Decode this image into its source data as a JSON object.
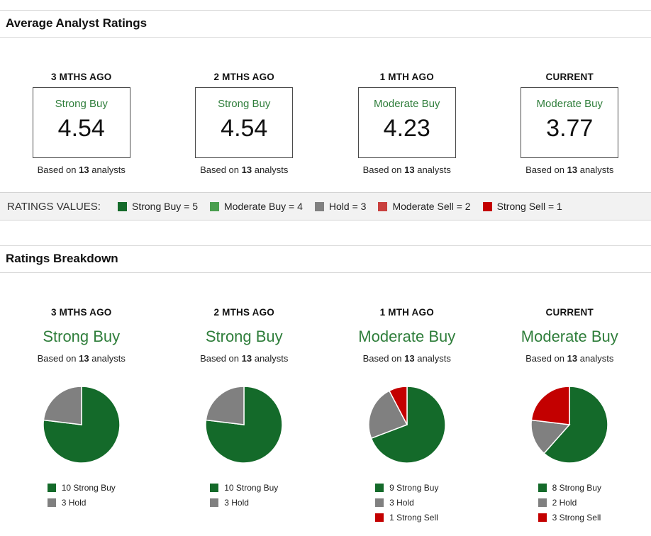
{
  "sections": {
    "average": {
      "title": "Average Analyst Ratings"
    },
    "breakdown": {
      "title": "Ratings Breakdown"
    }
  },
  "based_on": {
    "prefix": "Based on",
    "suffix": "analysts"
  },
  "colors": {
    "strong_buy": "#146a2a",
    "moderate_buy": "#4a9e4f",
    "hold": "#808080",
    "moderate_sell": "#c9403e",
    "strong_sell": "#c30000",
    "rating_text_green": "#2f7e3b"
  },
  "average": {
    "columns": [
      {
        "period": "3 MTHS AGO",
        "rating": "Strong Buy",
        "value": "4.54",
        "analysts": "13"
      },
      {
        "period": "2 MTHS AGO",
        "rating": "Strong Buy",
        "value": "4.54",
        "analysts": "13"
      },
      {
        "period": "1 MTH AGO",
        "rating": "Moderate Buy",
        "value": "4.23",
        "analysts": "13"
      },
      {
        "period": "CURRENT",
        "rating": "Moderate Buy",
        "value": "3.77",
        "analysts": "13"
      }
    ]
  },
  "ratings_values": {
    "label": "RATINGS VALUES:",
    "items": [
      {
        "label": "Strong Buy = 5",
        "color_key": "strong_buy"
      },
      {
        "label": "Moderate Buy = 4",
        "color_key": "moderate_buy"
      },
      {
        "label": "Hold = 3",
        "color_key": "hold"
      },
      {
        "label": "Moderate Sell = 2",
        "color_key": "moderate_sell"
      },
      {
        "label": "Strong Sell = 1",
        "color_key": "strong_sell"
      }
    ]
  },
  "breakdown": {
    "columns": [
      {
        "period": "3 MTHS AGO",
        "rating": "Strong Buy",
        "analysts": "13",
        "slices": [
          {
            "count": 10,
            "label": "Strong Buy",
            "color_key": "strong_buy"
          },
          {
            "count": 3,
            "label": "Hold",
            "color_key": "hold"
          }
        ]
      },
      {
        "period": "2 MTHS AGO",
        "rating": "Strong Buy",
        "analysts": "13",
        "slices": [
          {
            "count": 10,
            "label": "Strong Buy",
            "color_key": "strong_buy"
          },
          {
            "count": 3,
            "label": "Hold",
            "color_key": "hold"
          }
        ]
      },
      {
        "period": "1 MTH AGO",
        "rating": "Moderate Buy",
        "analysts": "13",
        "slices": [
          {
            "count": 9,
            "label": "Strong Buy",
            "color_key": "strong_buy"
          },
          {
            "count": 3,
            "label": "Hold",
            "color_key": "hold"
          },
          {
            "count": 1,
            "label": "Strong Sell",
            "color_key": "strong_sell"
          }
        ]
      },
      {
        "period": "CURRENT",
        "rating": "Moderate Buy",
        "analysts": "13",
        "slices": [
          {
            "count": 8,
            "label": "Strong Buy",
            "color_key": "strong_buy"
          },
          {
            "count": 2,
            "label": "Hold",
            "color_key": "hold"
          },
          {
            "count": 3,
            "label": "Strong Sell",
            "color_key": "strong_sell"
          }
        ]
      }
    ]
  },
  "chart_data": [
    {
      "type": "table",
      "title": "Average Analyst Ratings",
      "columns": [
        "3 MTHS AGO",
        "2 MTHS AGO",
        "1 MTH AGO",
        "CURRENT"
      ],
      "ratings": [
        "Strong Buy",
        "Strong Buy",
        "Moderate Buy",
        "Moderate Buy"
      ],
      "values": [
        4.54,
        4.54,
        4.23,
        3.77
      ],
      "analysts_per_column": [
        13,
        13,
        13,
        13
      ],
      "rating_scale": {
        "Strong Buy": 5,
        "Moderate Buy": 4,
        "Hold": 3,
        "Moderate Sell": 2,
        "Strong Sell": 1
      }
    },
    {
      "type": "pie",
      "title": "3 MTHS AGO",
      "labels": [
        "Strong Buy",
        "Hold"
      ],
      "values": [
        10,
        3
      ],
      "colors": [
        "#146a2a",
        "#808080"
      ],
      "legend_position": "bottom"
    },
    {
      "type": "pie",
      "title": "2 MTHS AGO",
      "labels": [
        "Strong Buy",
        "Hold"
      ],
      "values": [
        10,
        3
      ],
      "colors": [
        "#146a2a",
        "#808080"
      ],
      "legend_position": "bottom"
    },
    {
      "type": "pie",
      "title": "1 MTH AGO",
      "labels": [
        "Strong Buy",
        "Hold",
        "Strong Sell"
      ],
      "values": [
        9,
        3,
        1
      ],
      "colors": [
        "#146a2a",
        "#808080",
        "#c30000"
      ],
      "legend_position": "bottom"
    },
    {
      "type": "pie",
      "title": "CURRENT",
      "labels": [
        "Strong Buy",
        "Hold",
        "Strong Sell"
      ],
      "values": [
        8,
        2,
        3
      ],
      "colors": [
        "#146a2a",
        "#808080",
        "#c30000"
      ],
      "legend_position": "bottom"
    }
  ]
}
